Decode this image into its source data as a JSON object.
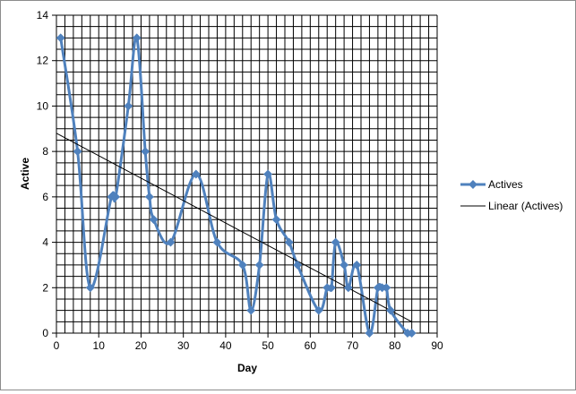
{
  "chart_data": {
    "type": "line",
    "xlabel": "Day",
    "ylabel": "Active",
    "xlim": [
      0,
      90
    ],
    "ylim": [
      0,
      14
    ],
    "x_ticks": [
      0,
      10,
      20,
      30,
      40,
      50,
      60,
      70,
      80,
      90
    ],
    "y_ticks": [
      0,
      2,
      4,
      6,
      8,
      10,
      12,
      14
    ],
    "grid": true,
    "legend_position": "right",
    "series": [
      {
        "name": "Actives",
        "color": "#4f81bd",
        "marker": "diamond",
        "smooth": true,
        "x": [
          1,
          5,
          8,
          13,
          14,
          17,
          19,
          21,
          22,
          23,
          27,
          33,
          38,
          44,
          46,
          48,
          50,
          52,
          55,
          57,
          62,
          64,
          65,
          66,
          68,
          69,
          71,
          74,
          76,
          77,
          78,
          79,
          83,
          84
        ],
        "y": [
          13,
          8,
          2,
          6,
          6,
          10,
          13,
          8,
          6,
          5,
          4,
          7,
          4,
          3,
          1,
          3,
          7,
          5,
          4,
          3,
          1,
          2,
          2,
          4,
          3,
          2,
          3,
          0,
          2,
          2,
          2,
          1,
          0,
          0
        ]
      },
      {
        "name": "Linear (Actives)",
        "color": "#000000",
        "type": "trendline",
        "x": [
          0,
          84
        ],
        "y": [
          8.8,
          0.5
        ]
      }
    ]
  }
}
